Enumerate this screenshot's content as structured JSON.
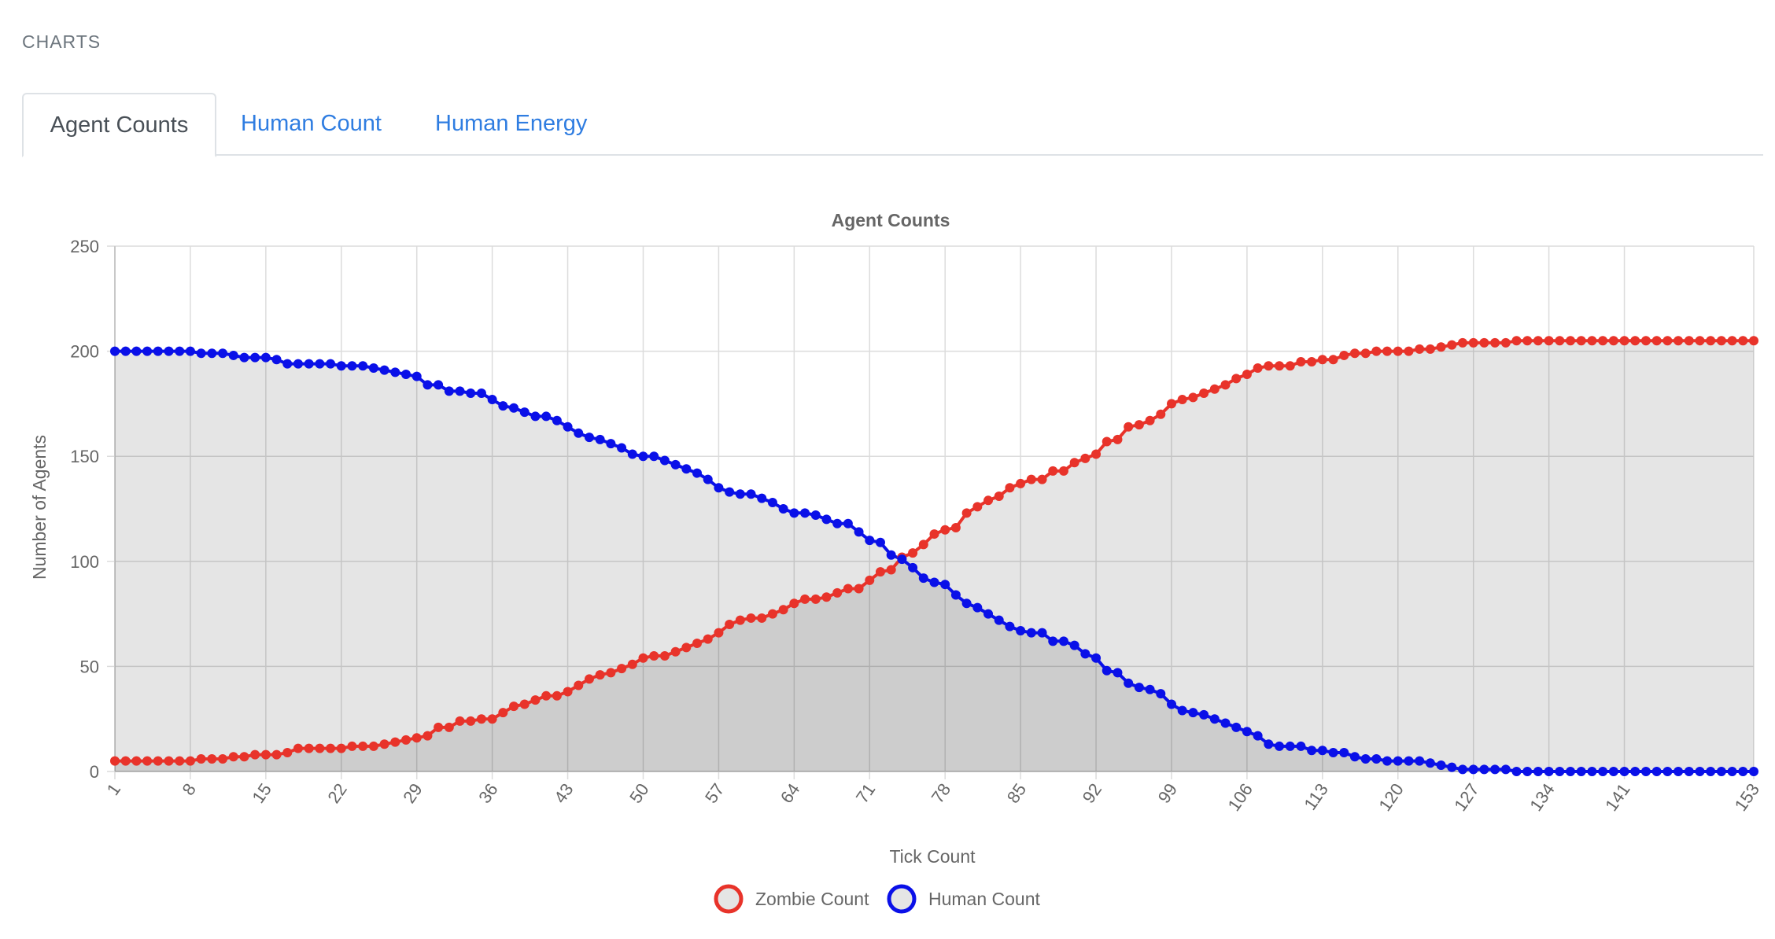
{
  "header": {
    "title": "CHARTS"
  },
  "tabs": [
    {
      "label": "Agent Counts",
      "active": true
    },
    {
      "label": "Human Count",
      "active": false
    },
    {
      "label": "Human Energy",
      "active": false
    }
  ],
  "chart_data": {
    "type": "line",
    "title": "Agent Counts",
    "xlabel": "Tick Count",
    "ylabel": "Number of Agents",
    "ylim": [
      0,
      250
    ],
    "yticks": [
      0,
      50,
      100,
      150,
      200,
      250
    ],
    "xticks": [
      1,
      8,
      15,
      22,
      29,
      36,
      43,
      50,
      57,
      64,
      71,
      78,
      85,
      92,
      99,
      106,
      113,
      120,
      127,
      134,
      141,
      153
    ],
    "x_start": 1,
    "x_end": 153,
    "grid": true,
    "legend_position": "bottom",
    "series": [
      {
        "name": "Zombie Count",
        "color": "#e8332a",
        "fill": "rgba(0,0,0,0.1)",
        "values": [
          5,
          5,
          5,
          5,
          5,
          5,
          5,
          5,
          6,
          6,
          6,
          7,
          7,
          8,
          8,
          8,
          9,
          11,
          11,
          11,
          11,
          11,
          12,
          12,
          12,
          13,
          14,
          15,
          16,
          17,
          21,
          21,
          24,
          24,
          25,
          25,
          28,
          31,
          32,
          34,
          36,
          36,
          38,
          41,
          44,
          46,
          47,
          49,
          51,
          54,
          55,
          55,
          57,
          59,
          61,
          63,
          66,
          70,
          72,
          73,
          73,
          75,
          77,
          80,
          82,
          82,
          83,
          85,
          87,
          87,
          91,
          95,
          96,
          102,
          104,
          108,
          113,
          115,
          116,
          123,
          126,
          129,
          131,
          135,
          137,
          139,
          139,
          143,
          143,
          147,
          149,
          151,
          157,
          158,
          164,
          165,
          167,
          170,
          175,
          177,
          178,
          180,
          182,
          184,
          187,
          189,
          192,
          193,
          193,
          193,
          195,
          195,
          196,
          196,
          198,
          199,
          199,
          200,
          200,
          200,
          200,
          201,
          201,
          202,
          203,
          204,
          204,
          204,
          204,
          204,
          205,
          205,
          205,
          205,
          205,
          205,
          205,
          205,
          205,
          205,
          205,
          205,
          205,
          205,
          205,
          205,
          205,
          205,
          205,
          205,
          205,
          205,
          205
        ]
      },
      {
        "name": "Human Count",
        "color": "#0a10e8",
        "fill": "rgba(0,0,0,0.1)",
        "values": [
          200,
          200,
          200,
          200,
          200,
          200,
          200,
          200,
          199,
          199,
          199,
          198,
          197,
          197,
          197,
          196,
          194,
          194,
          194,
          194,
          194,
          193,
          193,
          193,
          192,
          191,
          190,
          189,
          188,
          184,
          184,
          181,
          181,
          180,
          180,
          177,
          174,
          173,
          171,
          169,
          169,
          167,
          164,
          161,
          159,
          158,
          156,
          154,
          151,
          150,
          150,
          148,
          146,
          144,
          142,
          139,
          135,
          133,
          132,
          132,
          130,
          128,
          125,
          123,
          123,
          122,
          120,
          118,
          118,
          114,
          110,
          109,
          103,
          101,
          97,
          92,
          90,
          89,
          84,
          80,
          78,
          75,
          72,
          69,
          67,
          66,
          66,
          62,
          62,
          60,
          56,
          54,
          48,
          47,
          42,
          40,
          39,
          37,
          32,
          29,
          28,
          27,
          25,
          23,
          21,
          19,
          17,
          13,
          12,
          12,
          12,
          10,
          10,
          9,
          9,
          7,
          6,
          6,
          5,
          5,
          5,
          5,
          4,
          3,
          2,
          1,
          1,
          1,
          1,
          1,
          0,
          0,
          0,
          0,
          0,
          0,
          0,
          0,
          0,
          0,
          0,
          0,
          0,
          0,
          0,
          0,
          0,
          0,
          0,
          0,
          0,
          0,
          0
        ]
      }
    ]
  }
}
